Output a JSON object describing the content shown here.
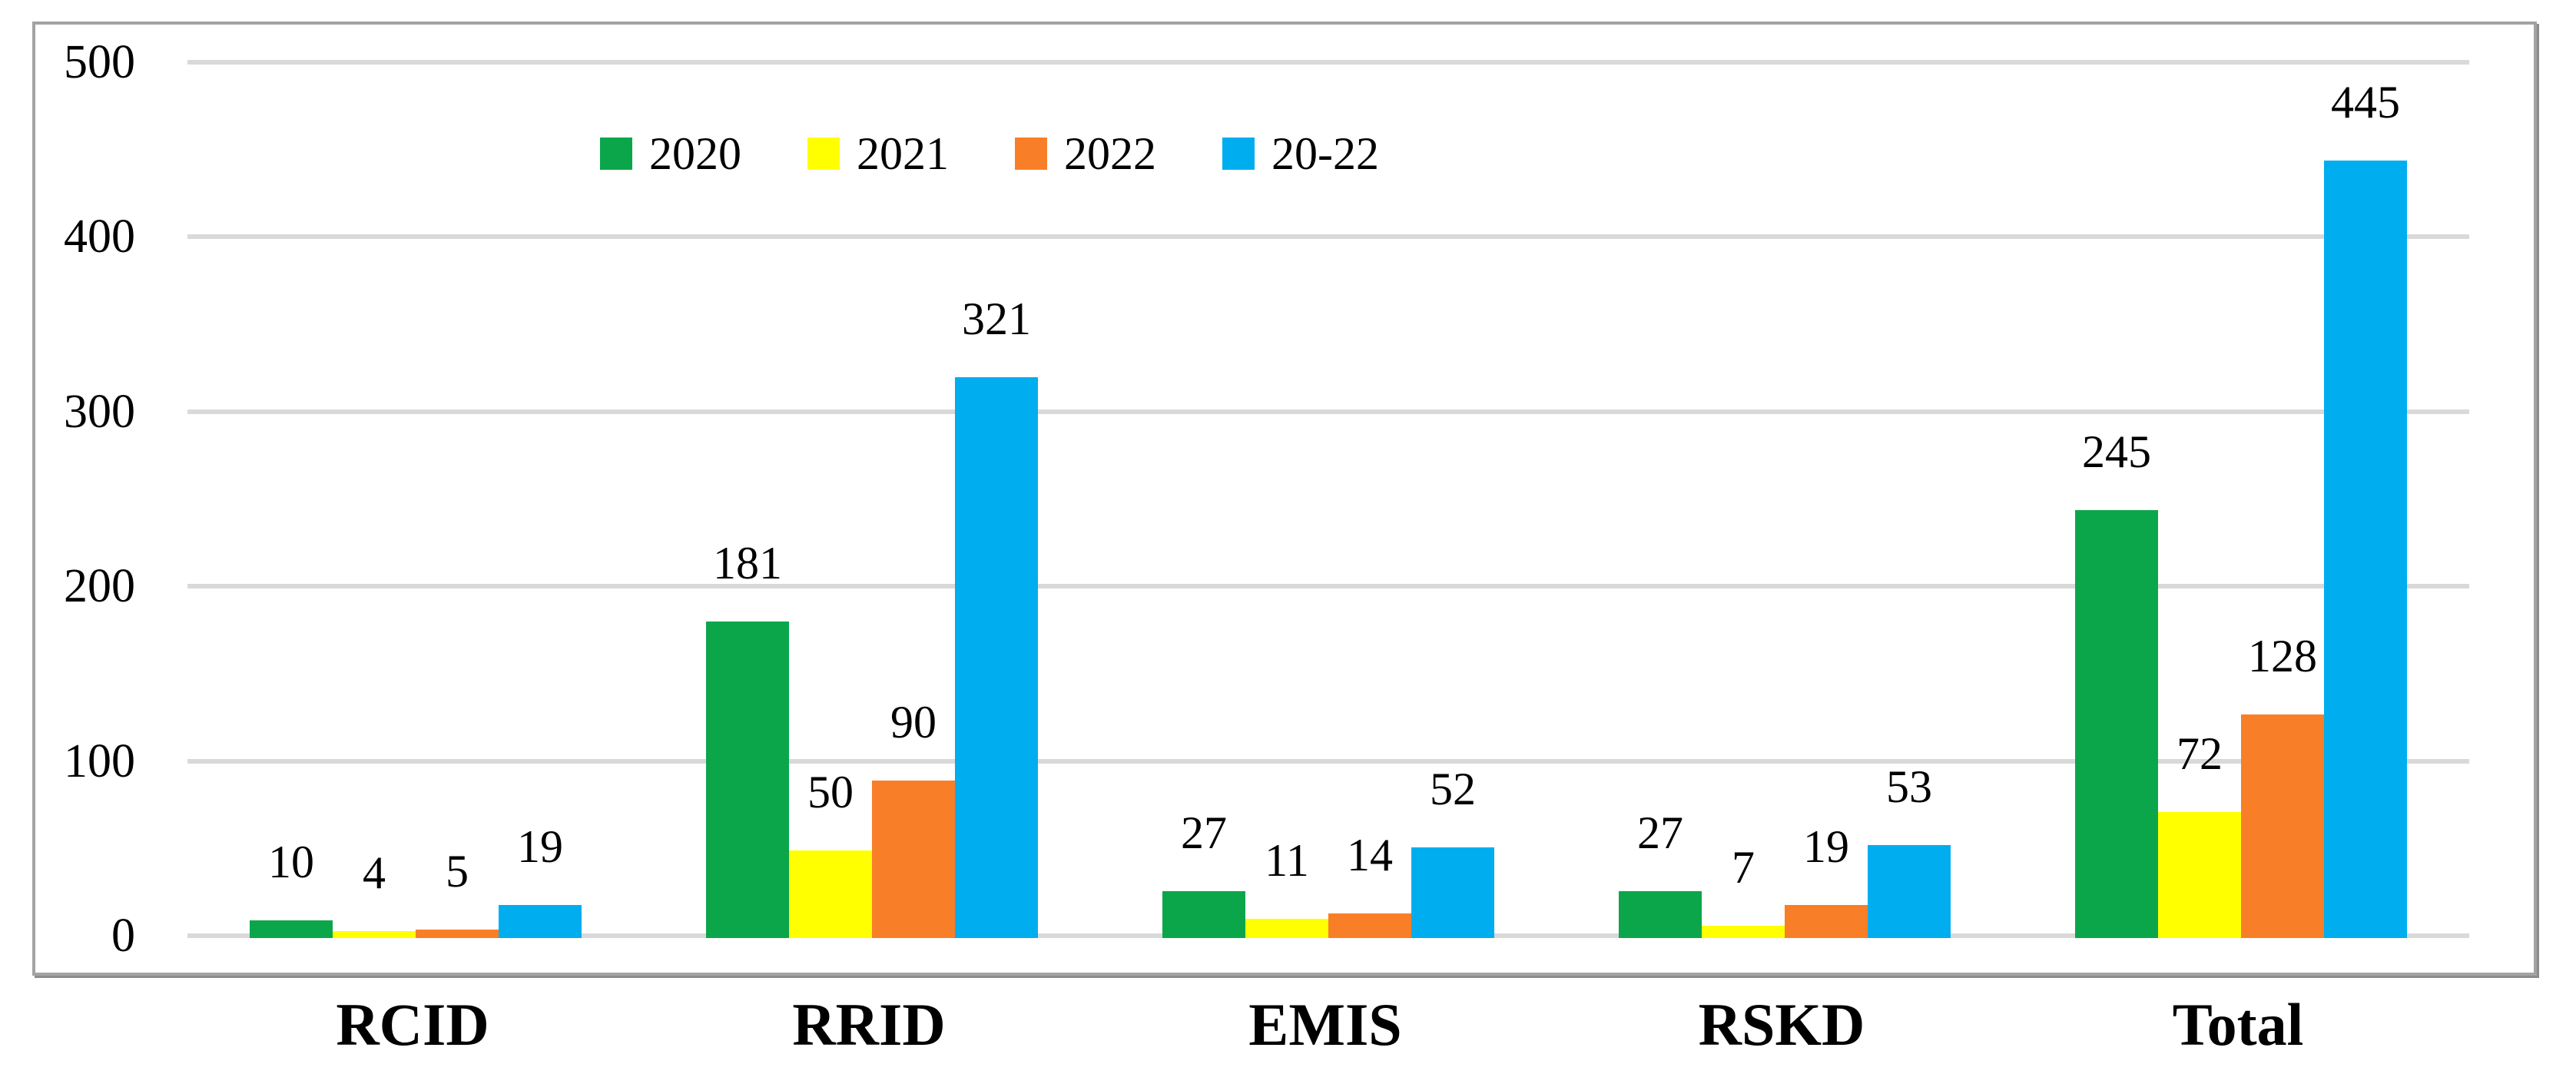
{
  "chart_data": {
    "type": "bar",
    "title": "",
    "xlabel": "",
    "ylabel": "",
    "categories": [
      "RCID",
      "RRID",
      "EMIS",
      "RSKD",
      "Total"
    ],
    "series": [
      {
        "name": "2020",
        "color": "#0ca64a",
        "values": [
          10,
          181,
          27,
          27,
          245
        ]
      },
      {
        "name": "2021",
        "color": "#ffff00",
        "values": [
          4,
          50,
          11,
          7,
          72
        ]
      },
      {
        "name": "2022",
        "color": "#f87f27",
        "values": [
          5,
          90,
          14,
          19,
          128
        ]
      },
      {
        "name": "20-22",
        "color": "#00aeef",
        "values": [
          19,
          321,
          52,
          53,
          445
        ]
      }
    ],
    "ylim": [
      0,
      500
    ],
    "yticks": [
      0,
      100,
      200,
      300,
      400,
      500
    ],
    "grid": true,
    "gridline_color": "#d9d9d9",
    "border_color": "#a3a3a3",
    "legend_position": "top-center",
    "data_labels": true
  }
}
